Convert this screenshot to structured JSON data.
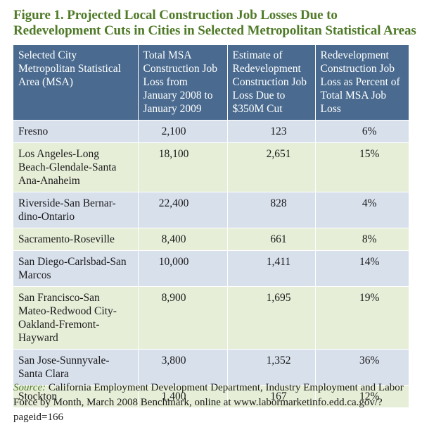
{
  "title": "Figure 1. Projected Local Construction Job Losses Due to Redevelopment Cuts in Cities in Selected Metropolitan Statistical Areas",
  "table": {
    "headers": [
      "Selected City Metropolitan Statistical Area (MSA)",
      "Total MSA Construction Job Loss from January 2008 to January 2009",
      "Estimate of Redevelopment Construction Job Loss Due to $350M Cut",
      "Redevelopment Construction Job Loss as Percent of Total MSA Job Loss"
    ],
    "rows": [
      {
        "msa": "Fresno",
        "total": "2,100",
        "estimate": "123",
        "percent": "6%"
      },
      {
        "msa": "Los Angeles-Long Beach-Glendale-Santa Ana-Anaheim",
        "total": "18,100",
        "estimate": "2,651",
        "percent": "15%"
      },
      {
        "msa": "Riverside-San Bernar-dino-Ontario",
        "total": "22,400",
        "estimate": "828",
        "percent": "4%"
      },
      {
        "msa": "Sacramento-Roseville",
        "total": "8,400",
        "estimate": "661",
        "percent": "8%"
      },
      {
        "msa": "San Diego-Carlsbad-San Marcos",
        "total": "10,000",
        "estimate": "1,411",
        "percent": "14%"
      },
      {
        "msa": "San Francisco-San Mateo-Redwood City-Oakland-Fremont-Hayward",
        "total": "8,900",
        "estimate": "1,695",
        "percent": "19%"
      },
      {
        "msa": "San Jose-Sunnyvale-Santa Clara",
        "total": "3,800",
        "estimate": "1,352",
        "percent": "36%"
      },
      {
        "msa": "Stockton",
        "total": "1,400",
        "estimate": "167",
        "percent": "12%"
      }
    ]
  },
  "source": {
    "label": "Source:",
    "text": "California Employment Development Department, Industry Employment and Labor Force by Month, March 2008 Benchmark, online at www.labormarketinfo.edd.ca.gov/?pageid=166"
  },
  "colors": {
    "title": "#4f7a28",
    "header_bg": "#4a6b8f",
    "row_blue": "#d8e0ec",
    "row_green": "#e6eed8"
  }
}
